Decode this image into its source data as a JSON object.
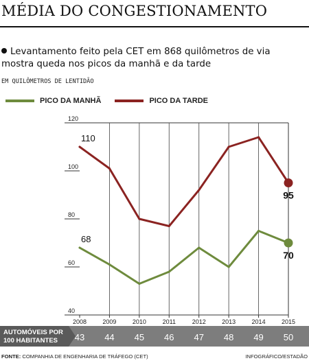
{
  "header": {
    "title": "MÉDIA DO CONGESTIONAMENTO",
    "subtitle": "Levantamento feito pela CET em 868 quilômetros de via mostra queda nos picos da manhã e da tarde",
    "units": "EM QUILÔMETROS DE LENTIDÃO"
  },
  "colors": {
    "morning": "#6e8b3d",
    "evening": "#8b2321",
    "band": "#7d7d7d"
  },
  "chart_data": {
    "type": "line",
    "x": [
      "2008",
      "2009",
      "2010",
      "2011",
      "2012",
      "2013",
      "2014",
      "2015"
    ],
    "ylim": [
      40,
      120
    ],
    "yticks": [
      "40",
      "60",
      "80",
      "100",
      "120"
    ],
    "grid": false,
    "series": [
      {
        "name": "PICO DA MANHÃ",
        "values": [
          68,
          61,
          53,
          58,
          68,
          60,
          75,
          70
        ]
      },
      {
        "name": "PICO DA TARDE",
        "values": [
          110,
          101,
          80,
          77,
          92,
          110,
          114,
          95
        ]
      }
    ],
    "annotations": {
      "morning_first": "68",
      "evening_first": "110",
      "morning_last": "70",
      "evening_last": "95"
    },
    "secondary_row": {
      "label_line1": "AUTOMÓVEIS POR",
      "label_line2": "100 HABITANTES",
      "values": [
        "43",
        "44",
        "45",
        "46",
        "47",
        "48",
        "49",
        "50"
      ]
    }
  },
  "footer": {
    "source_label": "FONTE:",
    "source": "COMPANHIA DE ENGENHARIA DE TRÁFEGO (CET)",
    "credit": "INFOGRÁFICO/ESTADÃO"
  }
}
